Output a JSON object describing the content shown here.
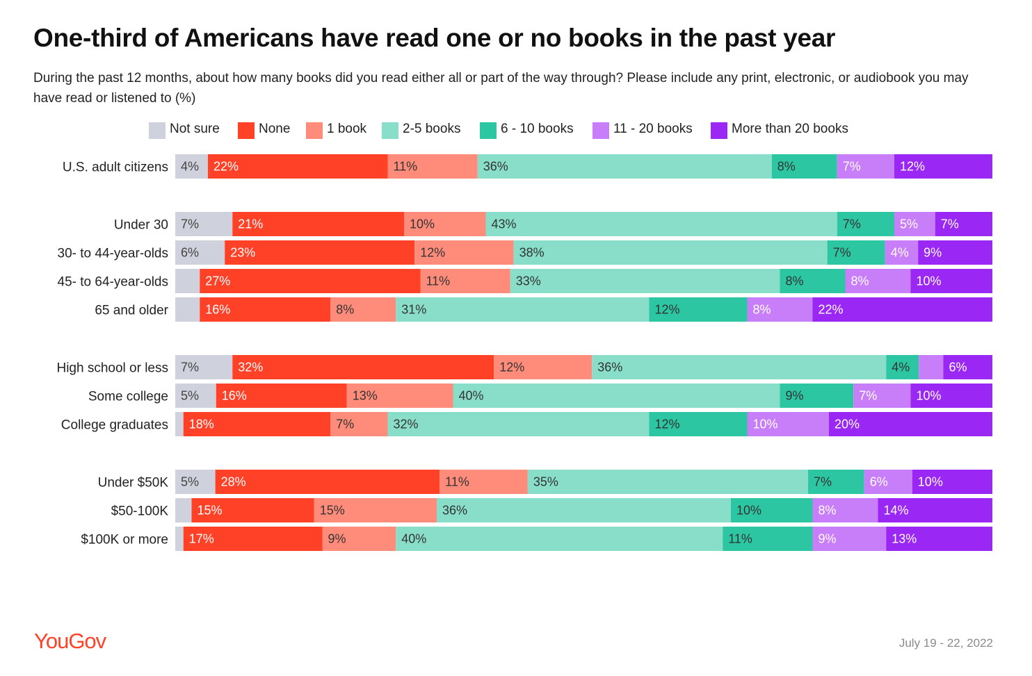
{
  "title": "One-third of Americans have read one or no books in the past year",
  "subtitle": "During the past 12 months, about how many books did you read either all or part of the way through? Please include any print, electronic, or audiobook you may have read or listened to (%)",
  "footer": {
    "brand": "YouGov",
    "date": "July 19 - 22, 2022"
  },
  "chart_data": {
    "type": "bar",
    "orientation": "horizontal",
    "stacked": true,
    "xlim": [
      0,
      100
    ],
    "legend_position": "top",
    "categories": [
      "U.S. adult citizens",
      "Under 30",
      "30- to 44-year-olds",
      "45- to 64-year-olds",
      "65 and older",
      "High school or less",
      "Some college",
      "College graduates",
      "Under $50K",
      "$50-100K",
      "$100K or more"
    ],
    "groups": [
      [
        0
      ],
      [
        1,
        2,
        3,
        4
      ],
      [
        5,
        6,
        7
      ],
      [
        8,
        9,
        10
      ]
    ],
    "series": [
      {
        "name": "Not sure",
        "color": "#cfd2dc",
        "text_color": "#444444",
        "values": [
          4,
          7,
          6,
          3,
          3,
          7,
          5,
          1,
          5,
          2,
          1
        ],
        "labels": [
          "4%",
          "7%",
          "6%",
          "",
          "",
          "7%",
          "5%",
          "",
          "5%",
          "",
          ""
        ]
      },
      {
        "name": "None",
        "color": "#ff4127",
        "text_color": "#ffffff",
        "values": [
          22,
          21,
          23,
          27,
          16,
          32,
          16,
          18,
          28,
          15,
          17
        ],
        "labels": [
          "22%",
          "21%",
          "23%",
          "27%",
          "16%",
          "32%",
          "16%",
          "18%",
          "28%",
          "15%",
          "17%"
        ]
      },
      {
        "name": "1 book",
        "color": "#ff8c7a",
        "text_color": "#333333",
        "values": [
          11,
          10,
          12,
          11,
          8,
          12,
          13,
          7,
          11,
          15,
          9
        ],
        "labels": [
          "11%",
          "10%",
          "12%",
          "11%",
          "8%",
          "12%",
          "13%",
          "7%",
          "11%",
          "15%",
          "9%"
        ]
      },
      {
        "name": "2-5 books",
        "color": "#88dec8",
        "text_color": "#333333",
        "values": [
          36,
          43,
          38,
          33,
          31,
          36,
          40,
          32,
          35,
          36,
          40
        ],
        "labels": [
          "36%",
          "43%",
          "38%",
          "33%",
          "31%",
          "36%",
          "40%",
          "32%",
          "35%",
          "36%",
          "40%"
        ]
      },
      {
        "name": "6 - 10 books",
        "color": "#2dc6a2",
        "text_color": "#333333",
        "values": [
          8,
          7,
          7,
          8,
          12,
          4,
          9,
          12,
          7,
          10,
          11
        ],
        "labels": [
          "8%",
          "7%",
          "7%",
          "8%",
          "12%",
          "4%",
          "9%",
          "12%",
          "7%",
          "10%",
          "11%"
        ]
      },
      {
        "name": "11 - 20 books",
        "color": "#c97ef9",
        "text_color": "#ffffff",
        "values": [
          7,
          5,
          4,
          8,
          8,
          3,
          7,
          10,
          6,
          8,
          9
        ],
        "labels": [
          "7%",
          "5%",
          "4%",
          "8%",
          "8%",
          "",
          "7%",
          "10%",
          "6%",
          "8%",
          "9%"
        ]
      },
      {
        "name": "More than 20 books",
        "color": "#9b27f5",
        "text_color": "#ffffff",
        "values": [
          12,
          7,
          9,
          10,
          22,
          6,
          10,
          20,
          10,
          14,
          13
        ],
        "labels": [
          "12%",
          "7%",
          "9%",
          "10%",
          "22%",
          "6%",
          "10%",
          "20%",
          "10%",
          "14%",
          "13%"
        ]
      }
    ]
  }
}
